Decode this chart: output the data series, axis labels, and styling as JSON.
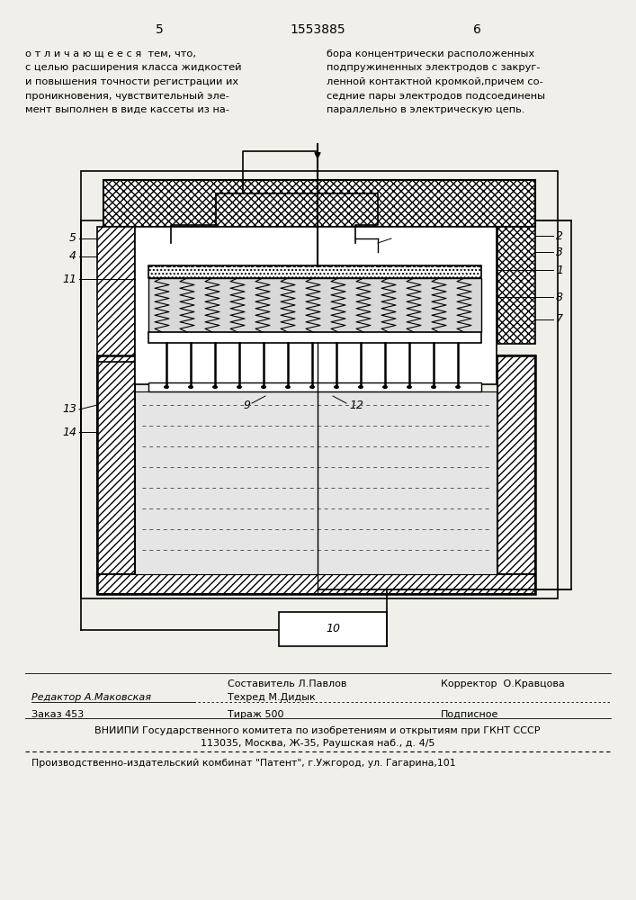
{
  "page_width": 7.07,
  "page_height": 10.0,
  "bg_color": "#f0efea",
  "header_left_num": "5",
  "header_center_num": "1553885",
  "header_right_num": "6",
  "text_col1_lines": [
    "о т л и ч а ю щ е е с я  тем, что,",
    "с целью расширения класса жидкостей",
    "и повышения точности регистрации их",
    "проникновения, чувствительный эле-",
    "мент выполнен в виде кассеты из на-"
  ],
  "text_col2_lines": [
    "бора концентрически расположенных",
    "подпружиненных электродов с закруг-",
    "ленной контактной кромкой,причем со-",
    "седние пары электродов подсоединены",
    "параллельно в электрическую цепь."
  ],
  "footer_line_sestavitel": "Составитель Л.Павлов",
  "footer_line_tehred": "Техред М.Дидык",
  "footer_line_korrektor": "Корректор  О.Кравцова",
  "footer_line_redaktor": "Редактор А.Маковская",
  "footer_line_zakaz": "Заказ 453",
  "footer_line_tirazh": "Тираж 500",
  "footer_line_podpisnoe": "Подписное",
  "footer_line_vniipи": "ВНИИПИ Государственного комитета по изобретениям и открытиям при ГКНТ СССР",
  "footer_line_address": "113035, Москва, Ж-35, Раушская наб., д. 4/5",
  "footer_line_patent": "Производственно-издательский комбинат \"Патент\", г.Ужгород, ул. Гагарина,101"
}
